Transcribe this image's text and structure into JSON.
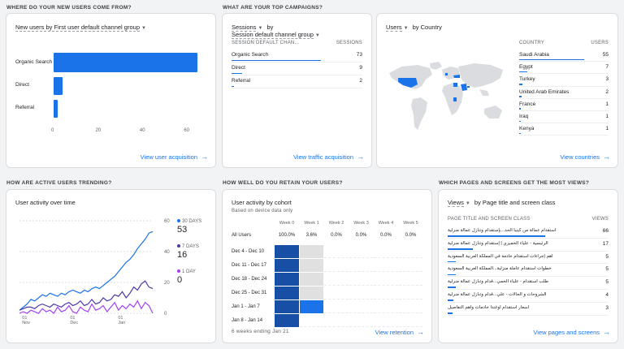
{
  "sections": {
    "acquisition": "WHERE DO YOUR NEW USERS COME FROM?",
    "campaigns": "WHAT ARE YOUR TOP CAMPAIGNS?",
    "countries_blank": "",
    "trending": "HOW ARE ACTIVE USERS TRENDING?",
    "retention": "HOW WELL DO YOU RETAIN YOUR USERS?",
    "pages": "WHICH PAGES AND SCREENS GET THE MOST VIEWS?"
  },
  "acquisition_card": {
    "title": "New users by First user default channel group",
    "link": "View user acquisition",
    "chart_data": {
      "type": "bar",
      "orientation": "horizontal",
      "categories": [
        "Organic Search",
        "Direct",
        "Referral"
      ],
      "values": [
        65,
        4,
        2
      ],
      "xlim": [
        0,
        65
      ],
      "ticks": [
        "0",
        "20",
        "40",
        "60"
      ],
      "color": "#1a73e8"
    }
  },
  "campaigns_card": {
    "title_line1": "Sessions",
    "title_by": "by",
    "title_line2": "Session default channel group",
    "col_left": "SESSION DEFAULT CHAN...",
    "col_right": "SESSIONS",
    "rows": [
      {
        "label": "Organic Search",
        "value": "73",
        "fraction": 1.0
      },
      {
        "label": "Direct",
        "value": "9",
        "fraction": 0.12
      },
      {
        "label": "Referral",
        "value": "2",
        "fraction": 0.03
      }
    ],
    "link": "View traffic acquisition"
  },
  "country_card": {
    "title": "Users",
    "title_by": "by Country",
    "col_left": "COUNTRY",
    "col_right": "USERS",
    "rows": [
      {
        "label": "Saudi Arabia",
        "value": "55",
        "fraction": 1.0
      },
      {
        "label": "Egypt",
        "value": "7",
        "fraction": 0.13
      },
      {
        "label": "Turkey",
        "value": "3",
        "fraction": 0.05
      },
      {
        "label": "United Arab Emirates",
        "value": "2",
        "fraction": 0.04
      },
      {
        "label": "France",
        "value": "1",
        "fraction": 0.02
      },
      {
        "label": "Iraq",
        "value": "1",
        "fraction": 0.02
      },
      {
        "label": "Kenya",
        "value": "1",
        "fraction": 0.02
      }
    ],
    "link": "View countries",
    "map_highlight": "#1a73e8",
    "map_base": "#dadce0"
  },
  "activity_card": {
    "title": "User activity over time",
    "legend": [
      {
        "label": "30 DAYS",
        "value": "53",
        "color": "#1a73e8"
      },
      {
        "label": "7 DAYS",
        "value": "16",
        "color": "#4a3aa8"
      },
      {
        "label": "1 DAY",
        "value": "0",
        "color": "#a142f4"
      }
    ],
    "chart_data": {
      "type": "line",
      "x_ticks": [
        "01\nNov",
        "01\nDec",
        "01\nJan"
      ],
      "y_ticks": [
        "60",
        "40",
        "20",
        "0"
      ],
      "ylim": [
        0,
        60
      ],
      "series": [
        {
          "name": "30 DAYS",
          "color": "#1a73e8",
          "values": [
            2,
            4,
            6,
            9,
            8,
            10,
            12,
            11,
            13,
            12,
            11,
            13,
            12,
            14,
            15,
            14,
            13,
            15,
            14,
            16,
            17,
            16,
            18,
            20,
            22,
            24,
            27,
            30,
            33,
            35,
            38,
            42,
            45,
            48,
            52,
            53
          ]
        },
        {
          "name": "7 DAYS",
          "color": "#4a3aa8",
          "values": [
            2,
            3,
            4,
            4,
            3,
            5,
            6,
            5,
            4,
            6,
            5,
            4,
            6,
            7,
            5,
            6,
            8,
            5,
            6,
            9,
            6,
            7,
            10,
            8,
            9,
            12,
            11,
            14,
            10,
            13,
            17,
            15,
            19,
            21,
            17,
            16
          ]
        },
        {
          "name": "1 DAY",
          "color": "#a142f4",
          "values": [
            0,
            1,
            0,
            2,
            1,
            0,
            3,
            1,
            2,
            0,
            4,
            1,
            2,
            5,
            1,
            0,
            4,
            2,
            1,
            6,
            2,
            3,
            5,
            1,
            4,
            7,
            2,
            5,
            3,
            6,
            4,
            8,
            3,
            7,
            5,
            0
          ]
        }
      ]
    }
  },
  "cohort_card": {
    "title": "User activity by cohort",
    "subtitle": "Based on device data only",
    "weeks": [
      "Week 0",
      "Week 1",
      "Week 2",
      "Week 3",
      "Week 4",
      "Week 5"
    ],
    "all_users_label": "All Users",
    "all_users_values": [
      "100.0%",
      "3.6%",
      "0.0%",
      "0.0%",
      "0.0%",
      "0.0%"
    ],
    "rows": [
      {
        "label": "Dec 4 - Dec 10",
        "cells": [
          "dark",
          "light",
          "none",
          "none",
          "none",
          "none"
        ]
      },
      {
        "label": "Dec 11 - Dec 17",
        "cells": [
          "dark",
          "light",
          "none",
          "none",
          "none",
          "none"
        ]
      },
      {
        "label": "Dec 18 - Dec 24",
        "cells": [
          "dark",
          "light",
          "none",
          "none",
          "none",
          "none"
        ]
      },
      {
        "label": "Dec 25 - Dec 31",
        "cells": [
          "dark",
          "light",
          "none",
          "none",
          "none",
          "none"
        ]
      },
      {
        "label": "Jan 1 - Jan 7",
        "cells": [
          "dark",
          "mid",
          "none",
          "none",
          "none",
          "none"
        ]
      },
      {
        "label": "Jan 8 - Jan 14",
        "cells": [
          "dark",
          "none",
          "none",
          "none",
          "none",
          "none"
        ]
      }
    ],
    "footer": "6 weeks ending Jan 21",
    "link": "View retention",
    "colors": {
      "dark": "#174ea6",
      "mid": "#1a73e8",
      "light": "#e0e0e0"
    }
  },
  "pages_card": {
    "title": "Views",
    "title_by": "by Page title and screen class",
    "col_left": "PAGE TITLE AND SCREEN CLASS",
    "col_right": "VIEWS",
    "rows": [
      {
        "label": "استقدام عمالة من كينيا الحد...بإستقدام وتنازل عمالة منزلية",
        "value": "66",
        "fraction": 1.0
      },
      {
        "label": "الرئيسية - علياء الخميزي | إستقدام وتنازل عمالة منزلية",
        "value": "17",
        "fraction": 0.26
      },
      {
        "label": "اهم إجراءات استقدام خادمة في المملكة العربية السعودية",
        "value": "5",
        "fraction": 0.08
      },
      {
        "label": "خطوات استقدام عاملة منزلية...المملكة العربية السعودية",
        "value": "5",
        "fraction": 0.08
      },
      {
        "label": "طلب استقدام - علياء الخمي...قدام وتنازل عمالة منزلية",
        "value": "5",
        "fraction": 0.08
      },
      {
        "label": "الشروحات و الحالات - علي...قدام وتنازل عمالة منزلية",
        "value": "4",
        "fraction": 0.06
      },
      {
        "label": "أسعار استقدام أوغندا خادمات وأهم التفاصيل",
        "value": "3",
        "fraction": 0.05
      }
    ],
    "link": "View pages and screens"
  }
}
